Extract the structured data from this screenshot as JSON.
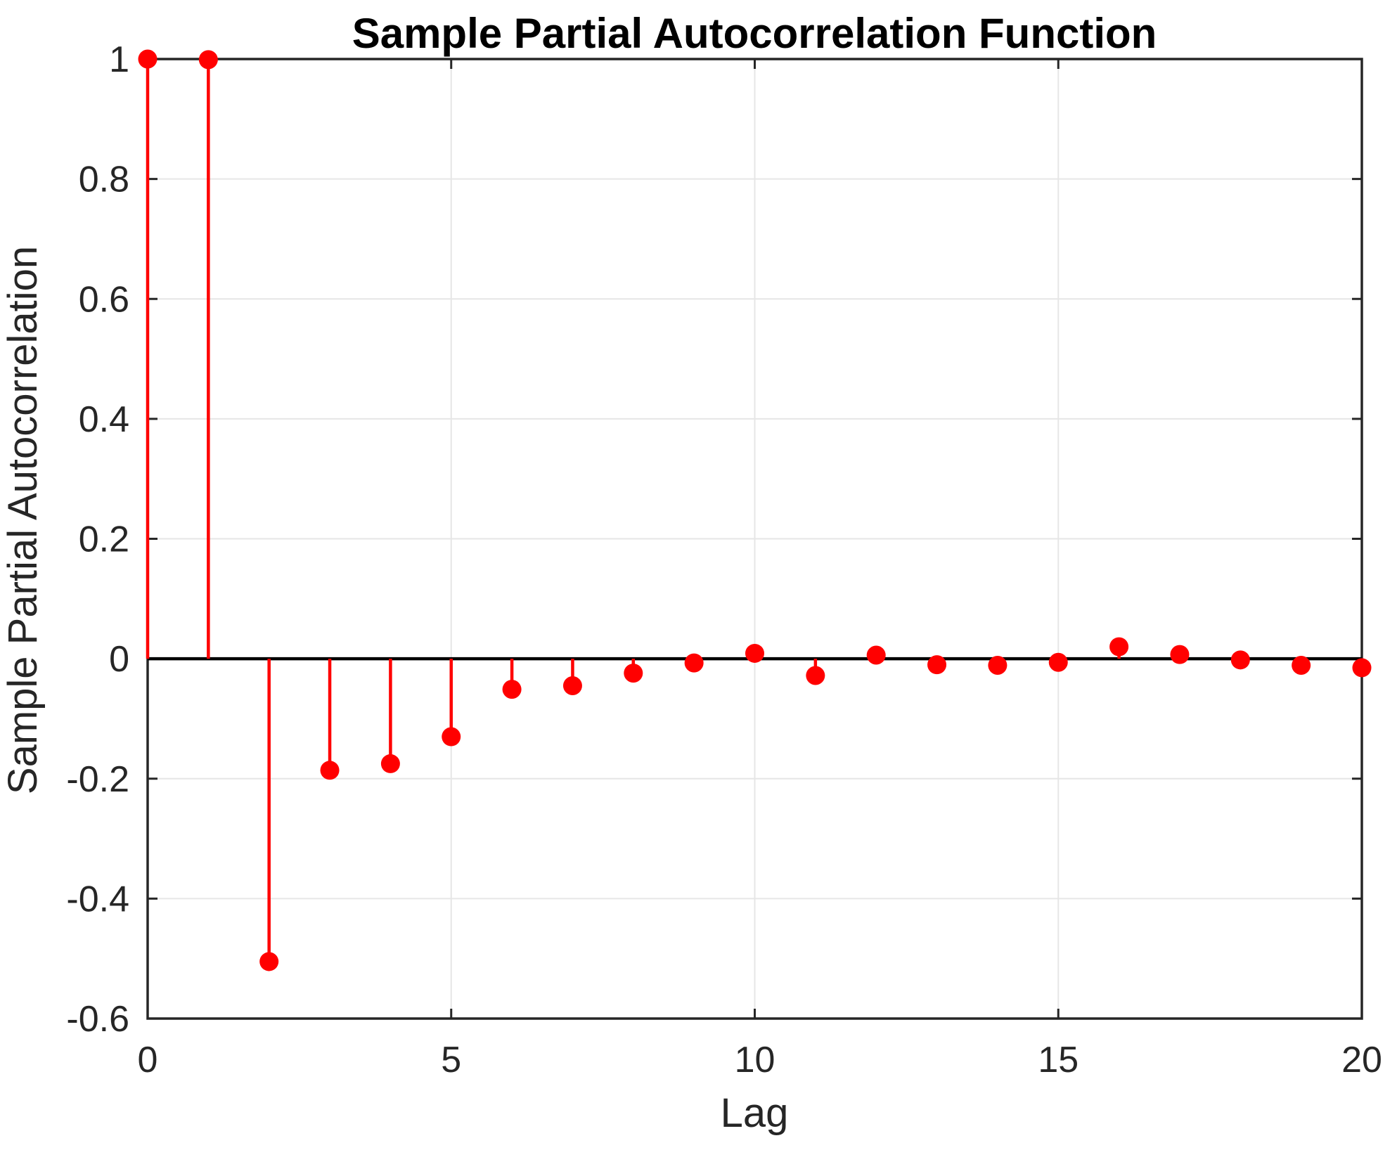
{
  "figure": {
    "background": "#ffffff"
  },
  "chart_data": {
    "type": "stem",
    "title": "Sample Partial Autocorrelation Function",
    "xlabel": "Lag",
    "ylabel": "Sample Partial Autocorrelation",
    "x": [
      0,
      1,
      2,
      3,
      4,
      5,
      6,
      7,
      8,
      9,
      10,
      11,
      12,
      13,
      14,
      15,
      16,
      17,
      18,
      19,
      20
    ],
    "values": [
      1.0,
      0.999,
      -0.505,
      -0.186,
      -0.175,
      -0.13,
      -0.051,
      -0.045,
      -0.024,
      -0.007,
      0.009,
      -0.028,
      0.006,
      -0.01,
      -0.011,
      -0.006,
      0.02,
      0.007,
      -0.002,
      -0.011,
      -0.015
    ],
    "xlim": [
      0,
      20
    ],
    "ylim": [
      -0.6,
      1.0
    ],
    "xticks": {
      "values": [
        0,
        5,
        10,
        15,
        20
      ],
      "labels": [
        "0",
        "5",
        "10",
        "15",
        "20"
      ]
    },
    "yticks": {
      "values": [
        1,
        0.8,
        0.6,
        0.4,
        0.2,
        0,
        -0.2,
        -0.4,
        -0.6
      ],
      "labels": [
        "1",
        "0.8",
        "0.6",
        "0.4",
        "0.2",
        "0",
        "-0.2",
        "-0.4",
        "-0.6"
      ]
    },
    "grid": true,
    "baseline_y": 0,
    "legend": "none",
    "colors": {
      "stem": "#ff0000",
      "marker": "#ff0000",
      "baseline": "#000000",
      "box": "#262626",
      "grid": "#e6e6e6",
      "tick": "#262626",
      "tick_text": "#262626",
      "label_text": "#262626",
      "title_text": "#000000"
    }
  }
}
